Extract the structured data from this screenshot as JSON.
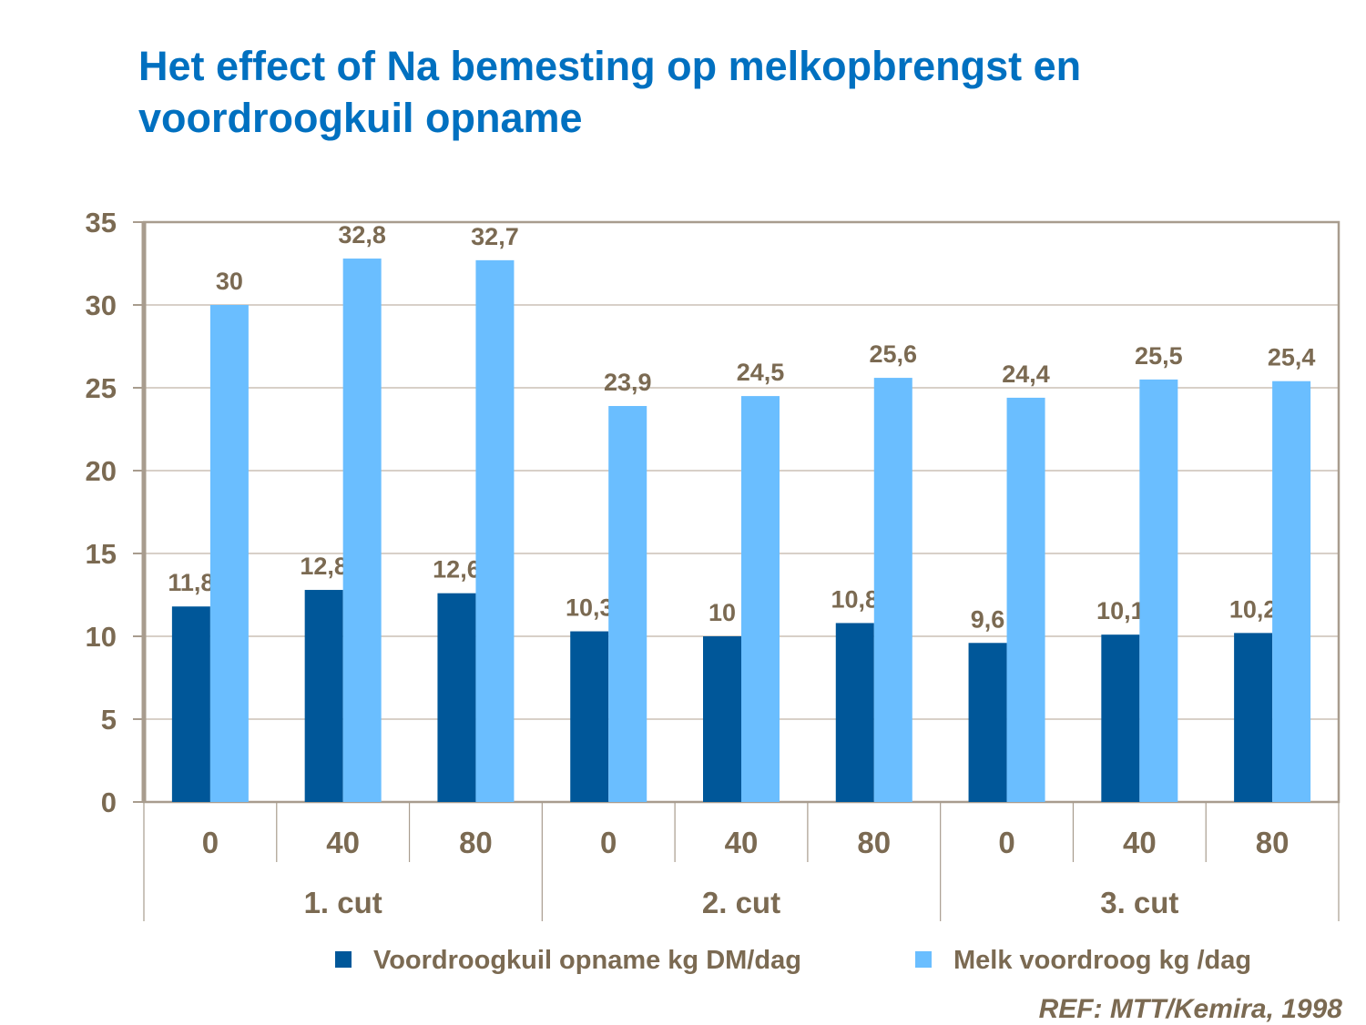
{
  "chart_data": {
    "type": "bar",
    "title": "Het effect of Na bemesting op melkopbrengst en voordroogkuil opname",
    "categories": [
      "0",
      "40",
      "80",
      "0",
      "40",
      "80",
      "0",
      "40",
      "80"
    ],
    "groups": [
      "1. cut",
      "2. cut",
      "3. cut"
    ],
    "ylim": [
      0,
      35
    ],
    "yticks": [
      0,
      5,
      10,
      15,
      20,
      25,
      30,
      35
    ],
    "grid": true,
    "legend_placement": "bottom",
    "series": [
      {
        "name": "Voordroogkuil opname kg DM/dag",
        "color": "#005799",
        "values": [
          11.8,
          12.8,
          12.6,
          10.3,
          10,
          10.8,
          9.6,
          10.1,
          10.2
        ],
        "labels": [
          "11,8",
          "12,8",
          "12,6",
          "10,3",
          "10",
          "10,8",
          "9,6",
          "10,1",
          "10,2"
        ]
      },
      {
        "name": "Melk voordroog kg /dag",
        "color": "#6ABEFF",
        "values": [
          30,
          32.8,
          32.7,
          23.9,
          24.5,
          25.6,
          24.4,
          25.5,
          25.4
        ],
        "labels": [
          "30",
          "32,8",
          "32,7",
          "23,9",
          "24,5",
          "25,6",
          "24,4",
          "25,5",
          "25,4"
        ]
      }
    ],
    "source": "REF: MTT/Kemira, 1998"
  }
}
